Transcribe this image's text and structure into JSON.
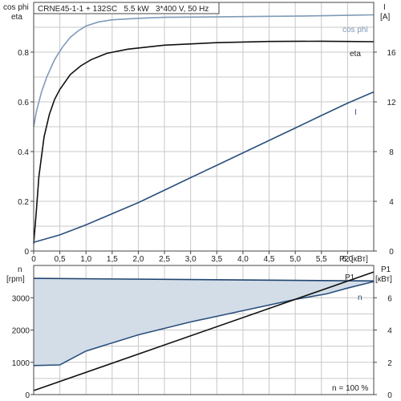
{
  "chart_data": [
    {
      "type": "line",
      "title": "CRNE45-1-1 + 132SC   5.5 kW   3*400 V, 50 Hz",
      "xlabel": "P2 [кВт]",
      "ylabel_left_top": "cos phi",
      "ylabel_left_bottom": "eta",
      "ylabel_right_top": "I",
      "ylabel_right_unit": "[A]",
      "xlim": [
        0,
        6.5
      ],
      "ylim_left": [
        0,
        1
      ],
      "ylim_right": [
        0,
        20
      ],
      "x_ticks": [
        "0",
        "0,5",
        "1,0",
        "1,5",
        "2,0",
        "2,5",
        "3,0",
        "3,5",
        "4,0",
        "4,5",
        "5,0",
        "5,5",
        "6,0"
      ],
      "y_left_ticks": [
        "0",
        "0.2",
        "0.4",
        "0.6",
        "0.8"
      ],
      "y_right_ticks": [
        "0",
        "4",
        "8",
        "12",
        "16"
      ],
      "grid": true,
      "series": [
        {
          "name": "cos phi",
          "axis": "left",
          "color": "#7f9ab8",
          "x": [
            0,
            0.05,
            0.15,
            0.25,
            0.4,
            0.55,
            0.7,
            0.85,
            1.0,
            1.25,
            1.5,
            2.0,
            2.5,
            3.0,
            4.0,
            5.0,
            6.0,
            6.5
          ],
          "y": [
            0.5,
            0.56,
            0.64,
            0.7,
            0.77,
            0.82,
            0.86,
            0.885,
            0.905,
            0.922,
            0.93,
            0.936,
            0.94,
            0.941,
            0.943,
            0.945,
            0.948,
            0.95
          ]
        },
        {
          "name": "eta",
          "axis": "left",
          "color": "#111111",
          "x": [
            0,
            0.05,
            0.1,
            0.2,
            0.3,
            0.4,
            0.5,
            0.7,
            0.9,
            1.1,
            1.4,
            1.8,
            2.5,
            3.5,
            4.5,
            5.5,
            6.0,
            6.5
          ],
          "y": [
            0.03,
            0.16,
            0.3,
            0.46,
            0.55,
            0.61,
            0.65,
            0.71,
            0.745,
            0.77,
            0.795,
            0.812,
            0.828,
            0.838,
            0.843,
            0.844,
            0.843,
            0.842
          ]
        },
        {
          "name": "I",
          "axis": "right",
          "color": "#2a4f7c",
          "x": [
            0,
            0.5,
            1.0,
            1.5,
            2.0,
            2.5,
            3.0,
            3.5,
            4.0,
            4.5,
            5.0,
            5.5,
            6.0,
            6.5
          ],
          "y": [
            0.7,
            1.3,
            2.1,
            3.0,
            3.9,
            4.9,
            5.9,
            6.9,
            7.9,
            8.9,
            9.9,
            10.9,
            11.9,
            12.8
          ]
        }
      ]
    },
    {
      "type": "line",
      "xlabel": "",
      "ylabel_left_top": "n",
      "ylabel_left_unit": "[rpm]",
      "ylabel_right_top": "P1",
      "ylabel_right_unit": "[кВт]",
      "xlim": [
        0,
        6.5
      ],
      "ylim_left": [
        0,
        4000
      ],
      "ylim_right": [
        0,
        8
      ],
      "y_left_ticks": [
        "0",
        "1000",
        "2000",
        "3000"
      ],
      "y_right_ticks": [
        "0",
        "2",
        "4",
        "6"
      ],
      "grid": true,
      "annotation": "n = 100 %",
      "series": [
        {
          "name": "n",
          "axis": "left",
          "color": "#2a4f7c",
          "x": [
            0,
            0.5,
            1.0,
            2.0,
            3.0,
            4.0,
            5.0,
            5.6,
            6.0,
            6.5
          ],
          "y": [
            900,
            920,
            1350,
            1850,
            2250,
            2600,
            2950,
            3120,
            3300,
            3500
          ]
        },
        {
          "name": "",
          "axis": "left",
          "color": "#1f4470",
          "x": [
            0,
            6.5
          ],
          "y": [
            3600,
            3520
          ]
        },
        {
          "name": "P1",
          "axis": "right",
          "color": "#111111",
          "x": [
            0,
            6.5
          ],
          "y": [
            0.25,
            7.6
          ]
        }
      ],
      "shade_color": "#d3dde8"
    }
  ]
}
